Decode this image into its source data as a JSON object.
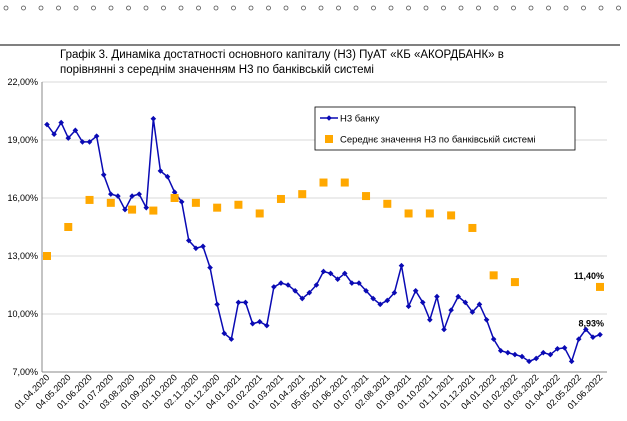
{
  "chart_data": {
    "type": "line",
    "title": [
      "Графік 3. Динаміка достатності основного капіталу (Н3) ПуАТ «КБ «АКОРДБАНК» в",
      "порівнянні з середнім значенням Н3 по банківській системі"
    ],
    "categories": [
      "01.04.2020",
      null,
      null,
      "04.05.2020",
      null,
      null,
      "01.06.2020",
      null,
      null,
      "01.07.2020",
      null,
      null,
      "03.08.2020",
      null,
      null,
      "01.09.2020",
      null,
      null,
      "01.10.2020",
      null,
      null,
      "02.11.2020",
      null,
      null,
      "01.12.2020",
      null,
      null,
      "04.01.2021",
      null,
      null,
      "01.02.2021",
      null,
      null,
      "01.03.2021",
      null,
      null,
      "01.04.2021",
      null,
      null,
      "05.05.2021",
      null,
      null,
      "01.06.2021",
      null,
      null,
      "01.07.2021",
      null,
      null,
      "02.08.2021",
      null,
      null,
      "01.09.2021",
      null,
      null,
      "01.10.2021",
      null,
      null,
      "01.11.2021",
      null,
      null,
      "01.12.2021",
      null,
      null,
      "04.01.2022",
      null,
      null,
      "01.02.2022",
      null,
      null,
      "01.03.2022",
      null,
      null,
      "01.04.2022",
      null,
      null,
      "02.05.2022",
      null,
      null,
      "01.06.2022"
    ],
    "series": [
      {
        "name": "Н3 банку",
        "color": "#0a0ab4",
        "marker": "diamond",
        "line": true,
        "label_color": "#1f3864",
        "values": [
          19.8,
          19.3,
          19.9,
          19.1,
          19.5,
          18.9,
          18.9,
          19.2,
          17.2,
          16.2,
          16.1,
          15.4,
          16.1,
          16.2,
          15.5,
          20.1,
          17.4,
          17.1,
          16.3,
          15.8,
          13.8,
          13.4,
          13.5,
          12.4,
          10.5,
          9.0,
          8.7,
          10.6,
          10.6,
          9.5,
          9.6,
          9.4,
          11.4,
          11.6,
          11.5,
          11.2,
          10.8,
          11.1,
          11.5,
          12.2,
          12.1,
          11.8,
          12.1,
          11.6,
          11.6,
          11.2,
          10.8,
          10.5,
          10.7,
          11.1,
          12.5,
          10.4,
          11.2,
          10.6,
          9.7,
          10.9,
          9.2,
          10.2,
          10.9,
          10.6,
          10.1,
          10.5,
          9.7,
          8.7,
          8.1,
          8.0,
          7.9,
          7.8,
          7.55,
          7.7,
          8.0,
          7.9,
          8.2,
          8.25,
          7.55,
          8.7,
          9.2,
          8.8,
          8.93
        ],
        "value_labels": [
          null,
          null,
          null,
          null,
          null,
          null,
          null,
          null,
          null,
          null,
          null,
          null,
          null,
          null,
          null,
          null,
          null,
          null,
          null,
          null,
          null,
          null,
          null,
          null,
          null,
          null,
          null,
          null,
          null,
          null,
          null,
          null,
          null,
          null,
          null,
          null,
          null,
          null,
          null,
          null,
          null,
          null,
          null,
          null,
          null,
          null,
          null,
          null,
          null,
          null,
          null,
          null,
          null,
          null,
          null,
          null,
          null,
          null,
          null,
          null,
          null,
          null,
          null,
          null,
          null,
          null,
          null,
          null,
          null,
          null,
          null,
          null,
          null,
          null,
          null,
          null,
          null,
          null,
          "8,93%"
        ]
      },
      {
        "name": "Середнє значення Н3 по банківській системі",
        "color": "#ffa800",
        "marker": "square",
        "line": false,
        "label_color": "#9c5b00",
        "values": [
          13.0,
          null,
          null,
          14.5,
          null,
          null,
          15.9,
          null,
          null,
          15.75,
          null,
          null,
          15.4,
          null,
          null,
          15.35,
          null,
          null,
          16.0,
          null,
          null,
          15.75,
          null,
          null,
          15.5,
          null,
          null,
          15.65,
          null,
          null,
          15.2,
          null,
          null,
          15.95,
          null,
          null,
          16.2,
          null,
          null,
          16.8,
          null,
          null,
          16.8,
          null,
          null,
          16.1,
          null,
          null,
          15.7,
          null,
          null,
          15.2,
          null,
          null,
          15.2,
          null,
          null,
          15.1,
          null,
          null,
          14.45,
          null,
          null,
          12.0,
          null,
          null,
          11.65,
          null,
          null,
          null,
          null,
          null,
          null,
          null,
          null,
          null,
          null,
          null,
          11.4
        ],
        "value_labels": [
          null,
          null,
          null,
          null,
          null,
          null,
          null,
          null,
          null,
          null,
          null,
          null,
          null,
          null,
          null,
          null,
          null,
          null,
          null,
          null,
          null,
          null,
          null,
          null,
          null,
          null,
          null,
          null,
          null,
          null,
          null,
          null,
          null,
          null,
          null,
          null,
          null,
          null,
          null,
          null,
          null,
          null,
          null,
          null,
          null,
          null,
          null,
          null,
          null,
          null,
          null,
          null,
          null,
          null,
          null,
          null,
          null,
          null,
          null,
          null,
          null,
          null,
          null,
          null,
          null,
          null,
          null,
          null,
          null,
          null,
          null,
          null,
          null,
          null,
          null,
          null,
          null,
          null,
          "11,40%"
        ]
      }
    ],
    "ylim": [
      7,
      22
    ],
    "yticks": [
      {
        "value": 7,
        "label": "7,00%"
      },
      {
        "value": 10,
        "label": "10,00%"
      },
      {
        "value": 13,
        "label": "13,00%"
      },
      {
        "value": 16,
        "label": "16,00%"
      },
      {
        "value": 19,
        "label": "19,00%"
      },
      {
        "value": 22,
        "label": "22,00%"
      }
    ],
    "grid": true,
    "legend": "upper right"
  }
}
